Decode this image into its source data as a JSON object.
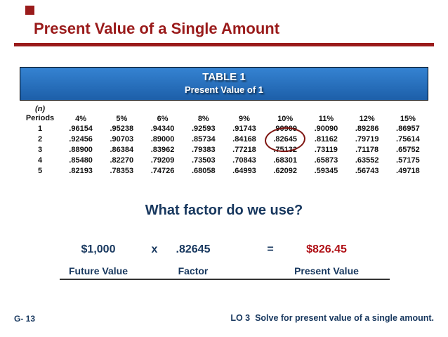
{
  "slide": {
    "title": "Present Value of a Single Amount",
    "footer_left": "G- 13",
    "footer_right": "LO 3  Solve for present value of a single amount."
  },
  "table": {
    "title_line1": "TABLE 1",
    "title_line2": "Present Value of 1",
    "header": {
      "periods_line1": "(n)",
      "periods_line2": "Periods",
      "rates": [
        "4%",
        "5%",
        "6%",
        "8%",
        "9%",
        "10%",
        "11%",
        "12%",
        "15%"
      ]
    },
    "rows": [
      {
        "period": "1",
        "values": [
          ".96154",
          ".95238",
          ".94340",
          ".92593",
          ".91743",
          ".90909",
          ".90090",
          ".89286",
          ".86957"
        ]
      },
      {
        "period": "2",
        "values": [
          ".92456",
          ".90703",
          ".89000",
          ".85734",
          ".84168",
          ".82645",
          ".81162",
          ".79719",
          ".75614"
        ]
      },
      {
        "period": "3",
        "values": [
          ".88900",
          ".86384",
          ".83962",
          ".79383",
          ".77218",
          ".75132",
          ".73119",
          ".71178",
          ".65752"
        ]
      },
      {
        "period": "4",
        "values": [
          ".85480",
          ".82270",
          ".79209",
          ".73503",
          ".70843",
          ".68301",
          ".65873",
          ".63552",
          ".57175"
        ]
      },
      {
        "period": "5",
        "values": [
          ".82193",
          ".78353",
          ".74726",
          ".68058",
          ".64993",
          ".62092",
          ".59345",
          ".56743",
          ".49718"
        ]
      }
    ],
    "highlighted_value": ".82645"
  },
  "question": "What factor do we use?",
  "formula": {
    "future_value": "$1,000",
    "times": "x",
    "factor": ".82645",
    "equals": "=",
    "present_value": "$826.45",
    "label_future": "Future Value",
    "label_factor": "Factor",
    "label_present": "Present Value"
  },
  "colors": {
    "maroon": "#9A1B1B",
    "navy": "#17375E",
    "blue_top": "#3583D2",
    "blue_bottom": "#1D5FA9",
    "result_red": "#B01117",
    "circle_red": "#7E1410"
  }
}
